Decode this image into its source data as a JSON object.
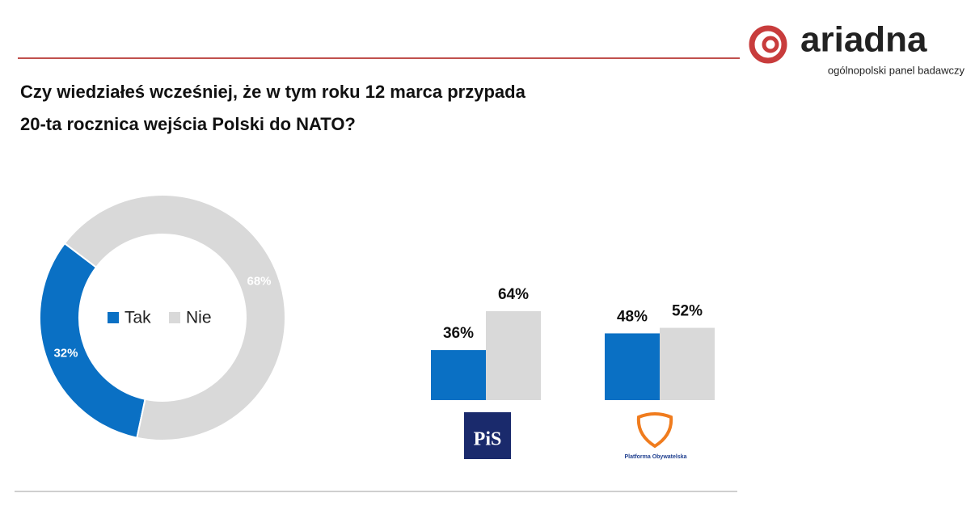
{
  "header": {
    "brand": "ariadna",
    "tagline": "ogólnopolski panel badawczy"
  },
  "title": [
    "Czy wiedziałeś wcześniej, że w tym roku 12 marca przypada",
    "20-ta rocznica wejścia Polski do NATO?"
  ],
  "chart_data": [
    {
      "type": "donut",
      "categories": [
        "Tak",
        "Nie"
      ],
      "values": [
        32,
        68
      ],
      "value_labels": [
        "32%",
        "68%"
      ],
      "colors": [
        "#0a70c4",
        "#d9d9d9"
      ],
      "legend": "center"
    },
    {
      "type": "bar",
      "categories": [
        "PiS",
        "Platforma Obywatelska"
      ],
      "series": [
        {
          "color": "#0a70c4",
          "values": [
            36,
            48
          ],
          "value_labels": [
            "36%",
            "48%"
          ]
        },
        {
          "color": "#d9d9d9",
          "values": [
            64,
            52
          ],
          "value_labels": [
            "64%",
            "52%"
          ]
        }
      ]
    }
  ]
}
